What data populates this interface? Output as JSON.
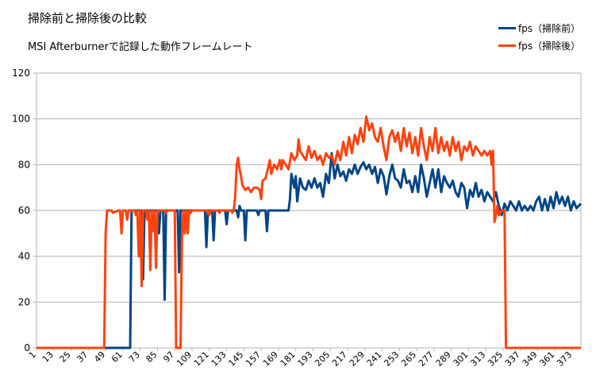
{
  "chart_data": {
    "type": "line",
    "title": "掃除前と掃除後の比較",
    "subtitle": "MSI Afterburnerで記録した動作フレームレート",
    "xlabel": "",
    "ylabel": "",
    "ylim": [
      0,
      120
    ],
    "xlim": [
      1,
      379
    ],
    "yticks": [
      0,
      20,
      40,
      60,
      80,
      100,
      120
    ],
    "xticks": [
      1,
      13,
      25,
      37,
      49,
      61,
      73,
      85,
      97,
      109,
      121,
      133,
      145,
      157,
      169,
      181,
      193,
      205,
      217,
      229,
      241,
      253,
      265,
      277,
      289,
      301,
      313,
      325,
      337,
      349,
      361,
      373
    ],
    "grid": true,
    "legend_position": "top-right",
    "series": [
      {
        "name": "fps（掃除前）",
        "color": "#004586",
        "points": [
          [
            1,
            0
          ],
          [
            66,
            0
          ],
          [
            67,
            60
          ],
          [
            74,
            60
          ],
          [
            75,
            30
          ],
          [
            76,
            60
          ],
          [
            80,
            60
          ],
          [
            81,
            60
          ],
          [
            85,
            60
          ],
          [
            86,
            50
          ],
          [
            87,
            60
          ],
          [
            89,
            60
          ],
          [
            90,
            21
          ],
          [
            91,
            60
          ],
          [
            95,
            60
          ],
          [
            96,
            60
          ],
          [
            99,
            60
          ],
          [
            100,
            33
          ],
          [
            101,
            60
          ],
          [
            110,
            60
          ],
          [
            111,
            60
          ],
          [
            118,
            60
          ],
          [
            119,
            44
          ],
          [
            120,
            60
          ],
          [
            123,
            60
          ],
          [
            124,
            47
          ],
          [
            125,
            60
          ],
          [
            132,
            60
          ],
          [
            133,
            54
          ],
          [
            134,
            60
          ],
          [
            140,
            60
          ],
          [
            141,
            57
          ],
          [
            142,
            62
          ],
          [
            143,
            60
          ],
          [
            145,
            60
          ],
          [
            146,
            47
          ],
          [
            147,
            60
          ],
          [
            154,
            60
          ],
          [
            155,
            58
          ],
          [
            156,
            60
          ],
          [
            160,
            60
          ],
          [
            161,
            51
          ],
          [
            162,
            60
          ],
          [
            172,
            60
          ],
          [
            173,
            60
          ],
          [
            176,
            60
          ],
          [
            177,
            65
          ],
          [
            178,
            76
          ],
          [
            180,
            70
          ],
          [
            181,
            75
          ],
          [
            182,
            64
          ],
          [
            184,
            74
          ],
          [
            186,
            70
          ],
          [
            188,
            69
          ],
          [
            190,
            73
          ],
          [
            192,
            70
          ],
          [
            194,
            74
          ],
          [
            196,
            70
          ],
          [
            198,
            72
          ],
          [
            200,
            66
          ],
          [
            202,
            76
          ],
          [
            204,
            72
          ],
          [
            206,
            85
          ],
          [
            208,
            74
          ],
          [
            210,
            80
          ],
          [
            212,
            75
          ],
          [
            214,
            77
          ],
          [
            216,
            73
          ],
          [
            218,
            78
          ],
          [
            220,
            76
          ],
          [
            222,
            80
          ],
          [
            224,
            76
          ],
          [
            226,
            79
          ],
          [
            228,
            81
          ],
          [
            230,
            78
          ],
          [
            232,
            80
          ],
          [
            234,
            76
          ],
          [
            236,
            79
          ],
          [
            238,
            72
          ],
          [
            240,
            78
          ],
          [
            242,
            75
          ],
          [
            244,
            67
          ],
          [
            246,
            75
          ],
          [
            248,
            80
          ],
          [
            250,
            74
          ],
          [
            252,
            73
          ],
          [
            254,
            70
          ],
          [
            256,
            78
          ],
          [
            258,
            72
          ],
          [
            260,
            73
          ],
          [
            262,
            68
          ],
          [
            264,
            75
          ],
          [
            266,
            68
          ],
          [
            268,
            80
          ],
          [
            270,
            74
          ],
          [
            272,
            66
          ],
          [
            274,
            72
          ],
          [
            276,
            78
          ],
          [
            278,
            70
          ],
          [
            280,
            78
          ],
          [
            282,
            68
          ],
          [
            284,
            75
          ],
          [
            286,
            72
          ],
          [
            288,
            70
          ],
          [
            290,
            73
          ],
          [
            292,
            68
          ],
          [
            294,
            66
          ],
          [
            296,
            72
          ],
          [
            298,
            70
          ],
          [
            300,
            61
          ],
          [
            302,
            69
          ],
          [
            304,
            66
          ],
          [
            306,
            72
          ],
          [
            308,
            66
          ],
          [
            310,
            69
          ],
          [
            312,
            64
          ],
          [
            314,
            68
          ],
          [
            316,
            66
          ],
          [
            318,
            64
          ],
          [
            320,
            68
          ],
          [
            322,
            62
          ],
          [
            324,
            58
          ],
          [
            326,
            63
          ],
          [
            328,
            60
          ],
          [
            330,
            64
          ],
          [
            332,
            62
          ],
          [
            334,
            60
          ],
          [
            336,
            64
          ],
          [
            338,
            60
          ],
          [
            340,
            62
          ],
          [
            342,
            60
          ],
          [
            344,
            62
          ],
          [
            346,
            60
          ],
          [
            348,
            64
          ],
          [
            350,
            66
          ],
          [
            352,
            60
          ],
          [
            354,
            65
          ],
          [
            356,
            60
          ],
          [
            358,
            66
          ],
          [
            360,
            61
          ],
          [
            362,
            68
          ],
          [
            364,
            63
          ],
          [
            366,
            66
          ],
          [
            368,
            62
          ],
          [
            370,
            66
          ],
          [
            372,
            60
          ],
          [
            374,
            64
          ],
          [
            376,
            61
          ],
          [
            379,
            63
          ]
        ]
      },
      {
        "name": "fps（掃除後）",
        "color": "#ff420e",
        "points": [
          [
            1,
            0
          ],
          [
            48,
            0
          ],
          [
            49,
            50
          ],
          [
            50,
            60
          ],
          [
            53,
            60
          ],
          [
            54,
            59
          ],
          [
            58,
            60
          ],
          [
            59,
            60
          ],
          [
            60,
            50
          ],
          [
            61,
            60
          ],
          [
            63,
            60
          ],
          [
            64,
            56
          ],
          [
            65,
            60
          ],
          [
            69,
            60
          ],
          [
            70,
            58
          ],
          [
            71,
            60
          ],
          [
            72,
            40
          ],
          [
            73,
            60
          ],
          [
            74,
            27
          ],
          [
            75,
            60
          ],
          [
            77,
            60
          ],
          [
            78,
            56
          ],
          [
            79,
            60
          ],
          [
            80,
            34
          ],
          [
            81,
            60
          ],
          [
            82,
            51
          ],
          [
            83,
            60
          ],
          [
            84,
            35
          ],
          [
            85,
            60
          ],
          [
            90,
            60
          ],
          [
            91,
            59
          ],
          [
            92,
            60
          ],
          [
            97,
            60
          ],
          [
            98,
            0
          ],
          [
            101,
            0
          ],
          [
            102,
            48
          ],
          [
            103,
            60
          ],
          [
            104,
            50
          ],
          [
            105,
            60
          ],
          [
            106,
            50
          ],
          [
            107,
            60
          ],
          [
            108,
            59
          ],
          [
            109,
            60
          ],
          [
            112,
            60
          ],
          [
            113,
            60
          ],
          [
            117,
            60
          ],
          [
            118,
            60
          ],
          [
            120,
            60
          ],
          [
            121,
            58
          ],
          [
            122,
            60
          ],
          [
            127,
            60
          ],
          [
            128,
            59
          ],
          [
            129,
            60
          ],
          [
            135,
            60
          ],
          [
            136,
            60
          ],
          [
            137,
            59
          ],
          [
            138,
            60
          ],
          [
            139,
            66
          ],
          [
            140,
            80
          ],
          [
            141,
            83
          ],
          [
            142,
            78
          ],
          [
            143,
            75
          ],
          [
            144,
            71
          ],
          [
            146,
            69
          ],
          [
            148,
            70
          ],
          [
            150,
            68
          ],
          [
            152,
            70
          ],
          [
            154,
            70
          ],
          [
            156,
            69
          ],
          [
            157,
            65
          ],
          [
            158,
            73
          ],
          [
            160,
            74
          ],
          [
            162,
            79
          ],
          [
            163,
            82
          ],
          [
            164,
            76
          ],
          [
            166,
            80
          ],
          [
            168,
            78
          ],
          [
            170,
            82
          ],
          [
            171,
            78
          ],
          [
            172,
            82
          ],
          [
            174,
            80
          ],
          [
            176,
            78
          ],
          [
            178,
            85
          ],
          [
            180,
            82
          ],
          [
            182,
            84
          ],
          [
            183,
            91
          ],
          [
            184,
            86
          ],
          [
            186,
            84
          ],
          [
            188,
            82
          ],
          [
            190,
            88
          ],
          [
            192,
            83
          ],
          [
            194,
            86
          ],
          [
            196,
            82
          ],
          [
            198,
            84
          ],
          [
            200,
            80
          ],
          [
            202,
            85
          ],
          [
            204,
            83
          ],
          [
            206,
            84
          ],
          [
            208,
            80
          ],
          [
            210,
            86
          ],
          [
            212,
            82
          ],
          [
            214,
            90
          ],
          [
            216,
            84
          ],
          [
            218,
            92
          ],
          [
            220,
            85
          ],
          [
            222,
            93
          ],
          [
            224,
            89
          ],
          [
            226,
            96
          ],
          [
            228,
            90
          ],
          [
            230,
            101
          ],
          [
            232,
            95
          ],
          [
            234,
            98
          ],
          [
            236,
            92
          ],
          [
            238,
            90
          ],
          [
            240,
            96
          ],
          [
            242,
            88
          ],
          [
            244,
            82
          ],
          [
            246,
            92
          ],
          [
            248,
            95
          ],
          [
            250,
            90
          ],
          [
            252,
            94
          ],
          [
            254,
            86
          ],
          [
            256,
            96
          ],
          [
            258,
            88
          ],
          [
            260,
            94
          ],
          [
            262,
            85
          ],
          [
            264,
            92
          ],
          [
            266,
            84
          ],
          [
            268,
            96
          ],
          [
            270,
            88
          ],
          [
            272,
            82
          ],
          [
            274,
            92
          ],
          [
            276,
            86
          ],
          [
            278,
            96
          ],
          [
            280,
            85
          ],
          [
            282,
            92
          ],
          [
            284,
            86
          ],
          [
            286,
            90
          ],
          [
            288,
            84
          ],
          [
            290,
            92
          ],
          [
            292,
            86
          ],
          [
            294,
            90
          ],
          [
            296,
            82
          ],
          [
            298,
            88
          ],
          [
            300,
            86
          ],
          [
            302,
            90
          ],
          [
            304,
            84
          ],
          [
            306,
            88
          ],
          [
            308,
            86
          ],
          [
            310,
            84
          ],
          [
            312,
            86
          ],
          [
            314,
            84
          ],
          [
            316,
            86
          ],
          [
            317,
            80
          ],
          [
            318,
            86
          ],
          [
            319,
            55
          ],
          [
            320,
            58
          ],
          [
            321,
            62
          ],
          [
            322,
            58
          ],
          [
            324,
            60
          ],
          [
            326,
            60
          ],
          [
            327,
            0
          ],
          [
            379,
            0
          ]
        ]
      }
    ]
  }
}
